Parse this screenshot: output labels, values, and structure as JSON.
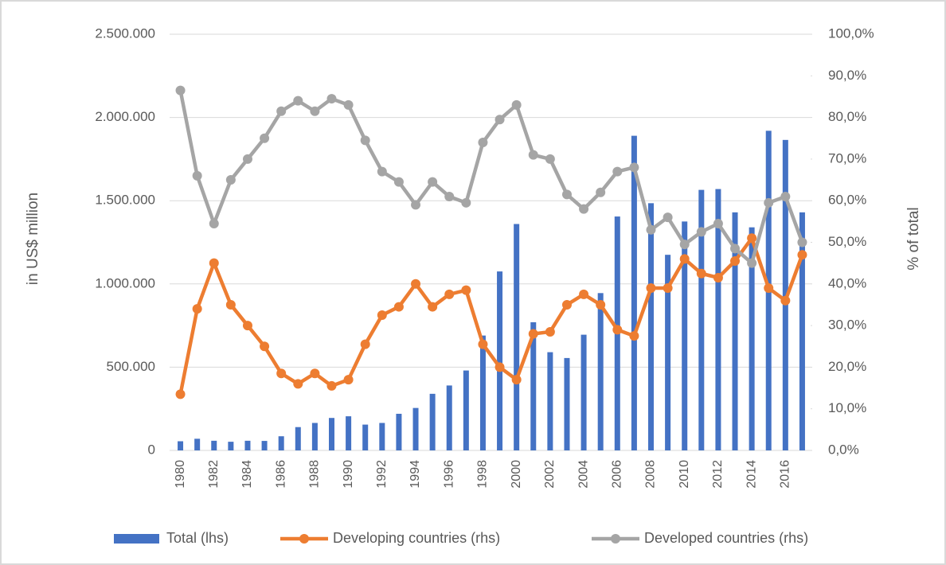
{
  "chart_data": {
    "type": "bar",
    "y_label": "in US$ million",
    "y2_label": "% of total",
    "categories": [
      "1980",
      null,
      "1982",
      null,
      "1984",
      null,
      "1986",
      null,
      "1988",
      null,
      "1990",
      null,
      "1992",
      null,
      "1994",
      null,
      "1996",
      null,
      "1998",
      null,
      "2000",
      null,
      "2002",
      null,
      "2004",
      null,
      "2006",
      null,
      "2008",
      null,
      "2010",
      null,
      "2012",
      null,
      "2014",
      null,
      "2016",
      null
    ],
    "series": [
      {
        "name": "Total (lhs)",
        "type": "bar",
        "axis": "y",
        "color": "#4472c4",
        "values": [
          55000,
          70000,
          58000,
          52000,
          58000,
          57000,
          85000,
          140000,
          165000,
          195000,
          205000,
          155000,
          165000,
          220000,
          255000,
          340000,
          390000,
          480000,
          690000,
          1075000,
          1360000,
          770000,
          590000,
          555000,
          695000,
          945000,
          1405000,
          1890000,
          1485000,
          1175000,
          1375000,
          1565000,
          1570000,
          1430000,
          1340000,
          1920000,
          1865000,
          1430000
        ]
      },
      {
        "name": "Developing countries (rhs)",
        "type": "line",
        "axis": "y2",
        "color": "#ed7d31",
        "values": [
          13.5,
          34,
          45,
          35,
          30,
          25,
          18.5,
          16,
          18.5,
          15.5,
          17,
          25.5,
          32.5,
          34.5,
          40,
          34.5,
          37.5,
          38.5,
          25.5,
          20,
          17,
          28,
          28.5,
          35,
          37.5,
          35,
          29,
          27.5,
          39,
          39,
          46,
          42.5,
          41.5,
          45.5,
          51,
          39,
          36,
          47
        ]
      },
      {
        "name": "Developed countries (rhs)",
        "type": "line",
        "axis": "y2",
        "color": "#a5a5a5",
        "values": [
          86.5,
          66,
          54.5,
          65,
          70,
          75,
          81.5,
          84,
          81.5,
          84.5,
          83,
          74.5,
          67,
          64.5,
          59,
          64.5,
          61,
          59.5,
          74,
          79.5,
          83,
          71,
          70,
          61.5,
          58,
          62,
          67,
          68,
          53,
          56,
          49.5,
          52.5,
          54.5,
          48.5,
          45,
          59.5,
          61,
          50
        ]
      }
    ],
    "ylim": [
      0,
      2500000
    ],
    "yticks": [
      0,
      {
        "value": 500000,
        "label": "500.000"
      },
      {
        "value": 1000000,
        "label": "1.000.000"
      },
      {
        "value": 1500000,
        "label": "1.500.000"
      },
      {
        "value": 2000000,
        "label": "2.000.000"
      },
      {
        "value": 2500000,
        "label": "2.500.000"
      }
    ],
    "y2lim": [
      0,
      100
    ],
    "y2ticks": [
      {
        "value": 0,
        "label": "0,0%"
      },
      {
        "value": 10,
        "label": "10,0%"
      },
      {
        "value": 20,
        "label": "20,0%"
      },
      {
        "value": 30,
        "label": "30,0%"
      },
      {
        "value": 40,
        "label": "40,0%"
      },
      {
        "value": 50,
        "label": "50,0%"
      },
      {
        "value": 60,
        "label": "60,0%"
      },
      {
        "value": 70,
        "label": "70,0%"
      },
      {
        "value": 80,
        "label": "80,0%"
      },
      {
        "value": 90,
        "label": "90,0%"
      },
      {
        "value": 100,
        "label": "100,0%"
      }
    ],
    "grid": true,
    "legend": "bottom"
  }
}
